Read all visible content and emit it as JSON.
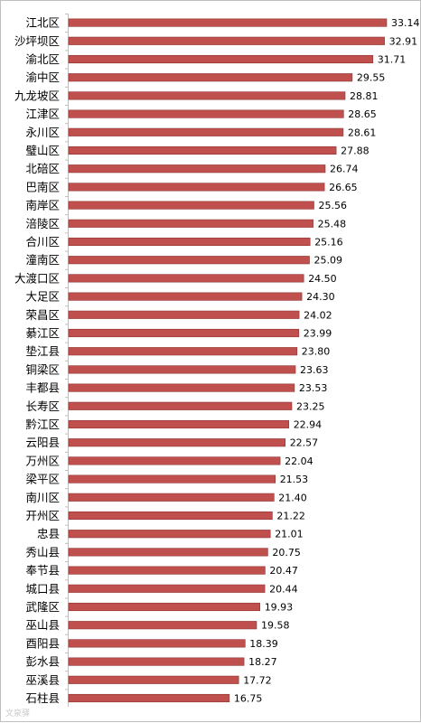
{
  "chart_data": {
    "type": "bar",
    "orientation": "horizontal",
    "categories": [
      "江北区",
      "沙坪坝区",
      "渝北区",
      "渝中区",
      "九龙坡区",
      "江津区",
      "永川区",
      "璧山区",
      "北碚区",
      "巴南区",
      "南岸区",
      "涪陵区",
      "合川区",
      "潼南区",
      "大渡口区",
      "大足区",
      "荣昌区",
      "綦江区",
      "垫江县",
      "铜梁区",
      "丰都县",
      "长寿区",
      "黔江区",
      "云阳县",
      "万州区",
      "梁平区",
      "南川区",
      "开州区",
      "忠县",
      "秀山县",
      "奉节县",
      "城口县",
      "武隆区",
      "巫山县",
      "酉阳县",
      "彭水县",
      "巫溪县",
      "石柱县"
    ],
    "values": [
      33.14,
      32.91,
      31.71,
      29.55,
      28.81,
      28.65,
      28.61,
      27.88,
      26.74,
      26.65,
      25.56,
      25.48,
      25.16,
      25.09,
      24.5,
      24.3,
      24.02,
      23.99,
      23.8,
      23.63,
      23.53,
      23.25,
      22.94,
      22.57,
      22.04,
      21.53,
      21.4,
      21.22,
      21.01,
      20.75,
      20.47,
      20.44,
      19.93,
      19.58,
      18.39,
      18.27,
      17.72,
      16.75
    ],
    "value_labels": [
      "33.14",
      "32.91",
      "31.71",
      "29.55",
      "28.81",
      "28.65",
      "28.61",
      "27.88",
      "26.74",
      "26.65",
      "25.56",
      "25.48",
      "25.16",
      "25.09",
      "24.50",
      "24.30",
      "24.02",
      "23.99",
      "23.80",
      "23.63",
      "23.53",
      "23.25",
      "22.94",
      "22.57",
      "22.04",
      "21.53",
      "21.40",
      "21.22",
      "21.01",
      "20.75",
      "20.47",
      "20.44",
      "19.93",
      "19.58",
      "18.39",
      "18.27",
      "17.72",
      "16.75"
    ],
    "xlim": [
      0,
      33.14
    ],
    "title": "",
    "xlabel": "",
    "ylabel": "",
    "grid": false,
    "legend": "none",
    "bar_color": "#c0504d",
    "bar_edge_color": "#8e3331"
  },
  "watermark": "文泉驿"
}
